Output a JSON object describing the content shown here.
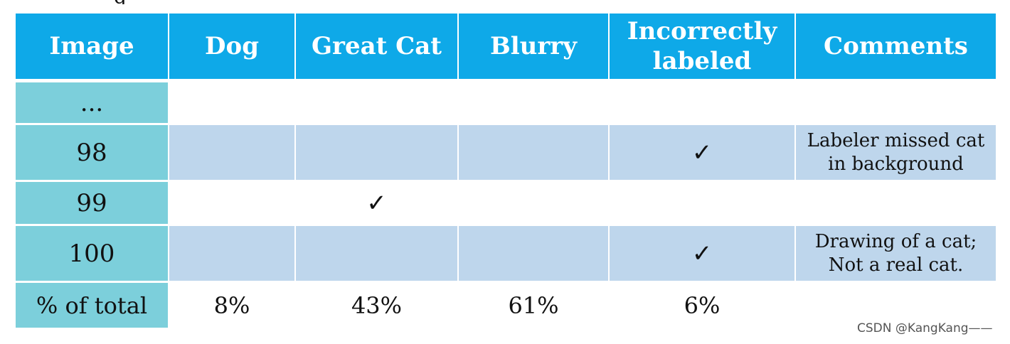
{
  "table": {
    "headers": [
      "Image",
      "Dog",
      "Great Cat",
      "Blurry",
      "Incorrectly labeled",
      "Comments"
    ],
    "rows": [
      {
        "label": "...",
        "cells": [
          "",
          "",
          "",
          "",
          ""
        ]
      },
      {
        "label": "98",
        "cells": [
          "",
          "",
          "",
          "✓",
          "Labeler missed cat in background"
        ]
      },
      {
        "label": "99",
        "cells": [
          "",
          "✓",
          "",
          "",
          ""
        ]
      },
      {
        "label": "100",
        "cells": [
          "",
          "",
          "",
          "✓",
          "Drawing of a cat; Not a real cat."
        ]
      }
    ],
    "totals": {
      "label": "% of total",
      "cells": [
        "8%",
        "43%",
        "61%",
        "6%",
        ""
      ]
    }
  },
  "watermark": "CSDN @KangKang——",
  "colors": {
    "header": "#0ea9e8",
    "row_label": "#7ccfdb",
    "row_shade": "#bed6ec"
  }
}
